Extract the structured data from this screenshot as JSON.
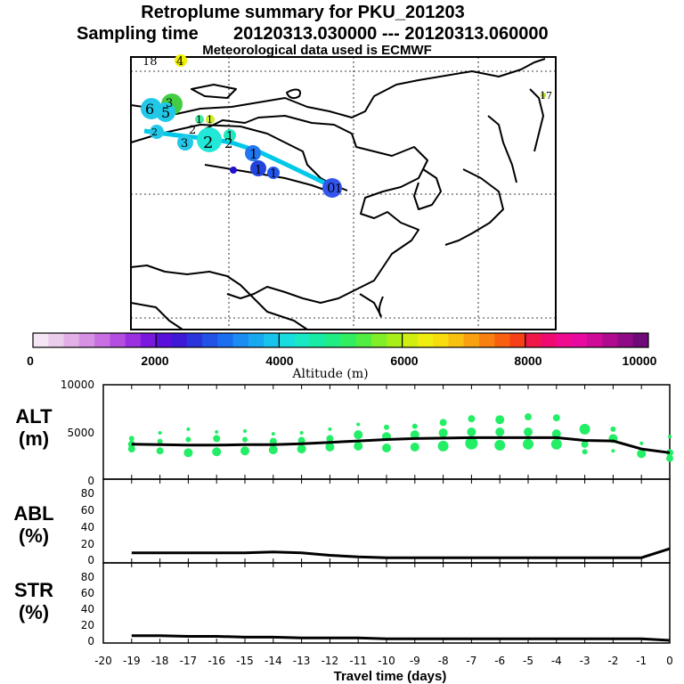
{
  "header": {
    "title": "Retroplume summary for PKU_201203",
    "sampling_label": "Sampling time",
    "sampling_range": "20120313.030000 --- 20120313.060000",
    "met_note": "Meteorological data used is ECMWF"
  },
  "colorbar": {
    "title": "Altitude (m)",
    "ticks": [
      "0",
      "2000",
      "4000",
      "6000",
      "8000",
      "10000"
    ],
    "range": [
      0,
      10000
    ]
  },
  "map_labels": [
    "18",
    "4",
    "6",
    "5",
    "3",
    "2",
    "2",
    "1",
    "3",
    "2",
    "2",
    "1",
    "1",
    "1",
    "1",
    "1",
    "0",
    "1",
    "17"
  ],
  "chart_data": [
    {
      "type": "line",
      "panel": "ALT",
      "ylabel_line1": "ALT",
      "ylabel_line2": "(m)",
      "xlim": [
        -20,
        0
      ],
      "ylim": [
        0,
        10000
      ],
      "yticks": [
        "10000",
        "5000",
        "0"
      ],
      "x": [
        -19,
        -18,
        -17,
        -16,
        -15,
        -14,
        -13,
        -12,
        -11,
        -10,
        -9,
        -8,
        -7,
        -6,
        -5,
        -4,
        -3,
        -2,
        -1,
        0
      ],
      "series": [
        {
          "name": "mean altitude",
          "values": [
            3700,
            3650,
            3600,
            3600,
            3650,
            3650,
            3750,
            3900,
            4050,
            4200,
            4300,
            4350,
            4400,
            4400,
            4400,
            4400,
            4100,
            4050,
            3200,
            2800
          ]
        }
      ],
      "scatter_points": [
        {
          "x": -19,
          "y": 4300,
          "r": 3
        },
        {
          "x": -19,
          "y": 3700,
          "r": 4
        },
        {
          "x": -19,
          "y": 3200,
          "r": 4
        },
        {
          "x": -18,
          "y": 4900,
          "r": 2
        },
        {
          "x": -18,
          "y": 4000,
          "r": 3
        },
        {
          "x": -18,
          "y": 3000,
          "r": 4
        },
        {
          "x": -17,
          "y": 5300,
          "r": 2
        },
        {
          "x": -17,
          "y": 4200,
          "r": 3
        },
        {
          "x": -17,
          "y": 2800,
          "r": 5
        },
        {
          "x": -16,
          "y": 5000,
          "r": 2
        },
        {
          "x": -16,
          "y": 4300,
          "r": 4
        },
        {
          "x": -16,
          "y": 2900,
          "r": 5
        },
        {
          "x": -15,
          "y": 5100,
          "r": 2
        },
        {
          "x": -15,
          "y": 4200,
          "r": 3
        },
        {
          "x": -15,
          "y": 3000,
          "r": 5
        },
        {
          "x": -14,
          "y": 4800,
          "r": 2
        },
        {
          "x": -14,
          "y": 4000,
          "r": 4
        },
        {
          "x": -14,
          "y": 3100,
          "r": 5
        },
        {
          "x": -13,
          "y": 4900,
          "r": 2
        },
        {
          "x": -13,
          "y": 4100,
          "r": 4
        },
        {
          "x": -13,
          "y": 3200,
          "r": 5
        },
        {
          "x": -12,
          "y": 5300,
          "r": 2
        },
        {
          "x": -12,
          "y": 4300,
          "r": 4
        },
        {
          "x": -12,
          "y": 3400,
          "r": 5
        },
        {
          "x": -11,
          "y": 5800,
          "r": 2
        },
        {
          "x": -11,
          "y": 4700,
          "r": 5
        },
        {
          "x": -11,
          "y": 3500,
          "r": 5
        },
        {
          "x": -10,
          "y": 5500,
          "r": 3
        },
        {
          "x": -10,
          "y": 4500,
          "r": 5
        },
        {
          "x": -10,
          "y": 3300,
          "r": 5
        },
        {
          "x": -9,
          "y": 5600,
          "r": 3
        },
        {
          "x": -9,
          "y": 4700,
          "r": 5
        },
        {
          "x": -9,
          "y": 3400,
          "r": 5
        },
        {
          "x": -8,
          "y": 6000,
          "r": 4
        },
        {
          "x": -8,
          "y": 4900,
          "r": 5
        },
        {
          "x": -8,
          "y": 3500,
          "r": 6
        },
        {
          "x": -7,
          "y": 6400,
          "r": 4
        },
        {
          "x": -7,
          "y": 5000,
          "r": 5
        },
        {
          "x": -7,
          "y": 3800,
          "r": 7
        },
        {
          "x": -6,
          "y": 6300,
          "r": 5
        },
        {
          "x": -6,
          "y": 5000,
          "r": 5
        },
        {
          "x": -6,
          "y": 3600,
          "r": 6
        },
        {
          "x": -5,
          "y": 6600,
          "r": 4
        },
        {
          "x": -5,
          "y": 5000,
          "r": 5
        },
        {
          "x": -5,
          "y": 3700,
          "r": 6
        },
        {
          "x": -4,
          "y": 6500,
          "r": 4
        },
        {
          "x": -4,
          "y": 4800,
          "r": 5
        },
        {
          "x": -4,
          "y": 3700,
          "r": 6
        },
        {
          "x": -3,
          "y": 5300,
          "r": 6
        },
        {
          "x": -3,
          "y": 3700,
          "r": 4
        },
        {
          "x": -3,
          "y": 2900,
          "r": 3
        },
        {
          "x": -2,
          "y": 5300,
          "r": 3
        },
        {
          "x": -2,
          "y": 4300,
          "r": 5
        },
        {
          "x": -2,
          "y": 3000,
          "r": 2
        },
        {
          "x": -1,
          "y": 3800,
          "r": 2
        },
        {
          "x": -1,
          "y": 2700,
          "r": 5
        },
        {
          "x": 0,
          "y": 4500,
          "r": 2
        },
        {
          "x": 0,
          "y": 2800,
          "r": 4
        },
        {
          "x": 0,
          "y": 2200,
          "r": 4
        }
      ]
    },
    {
      "type": "line",
      "panel": "ABL",
      "ylabel_line1": "ABL",
      "ylabel_line2": "(%)",
      "xlim": [
        -20,
        0
      ],
      "ylim": [
        0,
        100
      ],
      "yticks": [
        "80",
        "60",
        "40",
        "20",
        "0"
      ],
      "x": [
        -19,
        -18,
        -17,
        -16,
        -15,
        -14,
        -13,
        -12,
        -11,
        -10,
        -9,
        -8,
        -7,
        -6,
        -5,
        -4,
        -3,
        -2,
        -1,
        0
      ],
      "series": [
        {
          "name": "ABL fraction",
          "values": [
            9,
            9,
            9,
            9,
            9,
            10,
            9,
            6,
            4,
            3,
            3,
            3,
            3,
            3,
            3,
            3,
            3,
            3,
            3,
            14
          ]
        }
      ]
    },
    {
      "type": "line",
      "panel": "STR",
      "ylabel_line1": "STR",
      "ylabel_line2": "(%)",
      "xlim": [
        -20,
        0
      ],
      "ylim": [
        0,
        100
      ],
      "yticks": [
        "80",
        "60",
        "40",
        "20",
        "0"
      ],
      "xlabel": "Travel time (days)",
      "xticks": [
        "-20",
        "-19",
        "-18",
        "-17",
        "-16",
        "-15",
        "-14",
        "-13",
        "-12",
        "-11",
        "-10",
        "-9",
        "-8",
        "-7",
        "-6",
        "-5",
        "-4",
        "-3",
        "-2",
        "-1",
        "0"
      ],
      "x": [
        -19,
        -18,
        -17,
        -16,
        -15,
        -14,
        -13,
        -12,
        -11,
        -10,
        -9,
        -8,
        -7,
        -6,
        -5,
        -4,
        -3,
        -2,
        -1,
        0
      ],
      "series": [
        {
          "name": "STR fraction",
          "values": [
            6,
            6,
            5,
            5,
            4,
            4,
            3,
            3,
            3,
            2,
            2,
            2,
            2,
            2,
            2,
            2,
            2,
            2,
            2,
            0
          ]
        }
      ]
    }
  ]
}
